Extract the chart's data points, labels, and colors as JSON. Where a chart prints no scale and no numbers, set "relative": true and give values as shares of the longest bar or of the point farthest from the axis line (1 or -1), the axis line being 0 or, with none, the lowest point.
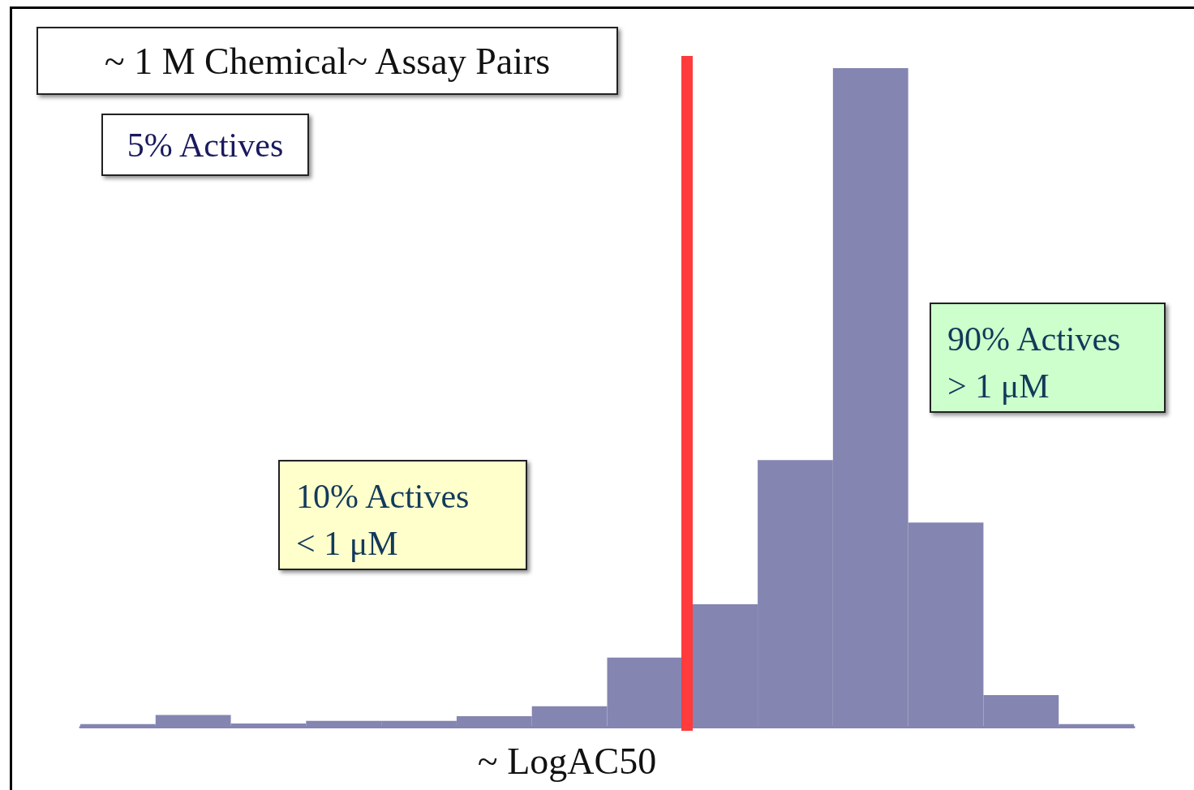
{
  "chart_data": {
    "type": "bar",
    "title": "~ 1 M Chemical~ Assay Pairs",
    "subtitle": "5% Actives",
    "xlabel": "~ LogAC50",
    "categories": [
      null,
      null,
      null,
      null,
      null,
      null,
      null,
      null,
      null,
      null,
      null,
      null,
      null,
      null
    ],
    "values": [
      0.004,
      0.018,
      0.005,
      0.009,
      0.009,
      0.016,
      0.031,
      0.105,
      0.186,
      0.405,
      1,
      0.31,
      0.048,
      0.004
    ],
    "color": "#8585b2",
    "annotations": [
      "10% Actives\n< 1 μM",
      "90% Actives\n> 1 μM"
    ],
    "relative": true
  }
}
